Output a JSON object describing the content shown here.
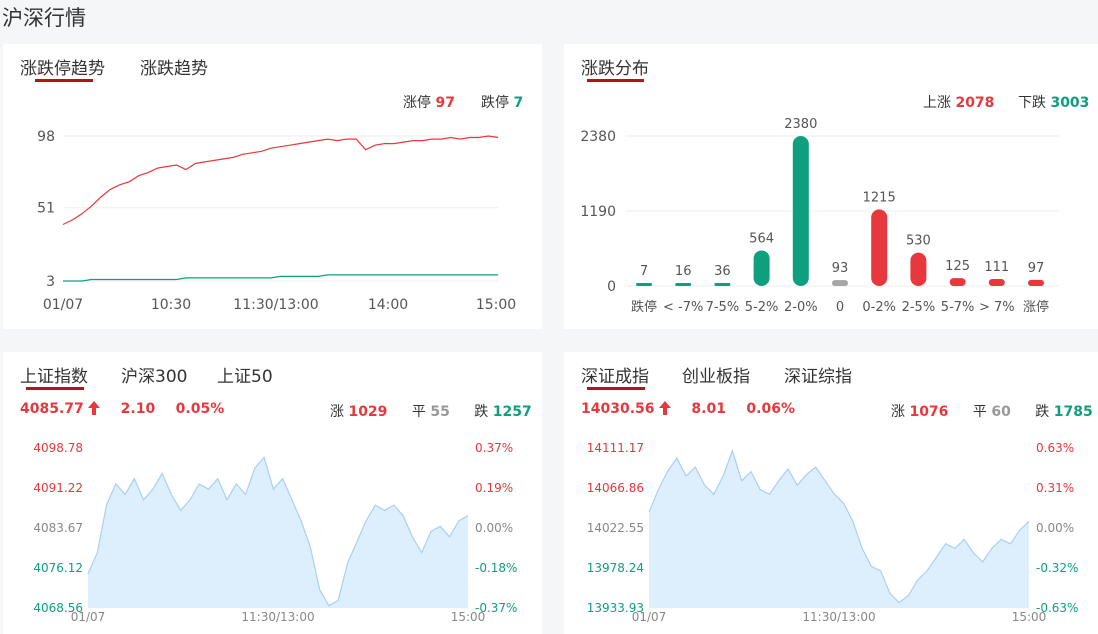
{
  "page_title": "沪深行情",
  "colors": {
    "red": "#e8383d",
    "green": "#0e9f7e",
    "gray": "#999999",
    "accent": "#b5121b",
    "area": "#ddeefc",
    "area_line": "#a9d0f5"
  },
  "trend_panel": {
    "tabs": [
      {
        "label": "涨跌停趋势",
        "active": true
      },
      {
        "label": "涨跌趋势",
        "active": false
      }
    ],
    "limit_up_label": "涨停",
    "limit_up_value": "97",
    "limit_down_label": "跌停",
    "limit_down_value": "7",
    "chart_data": {
      "type": "line",
      "x_ticks": [
        "01/07",
        "10:30",
        "11:30/13:00",
        "14:00",
        "15:00"
      ],
      "y_ticks": [
        "98",
        "51",
        "3"
      ],
      "ylim": [
        3,
        98
      ],
      "series": [
        {
          "name": "涨停",
          "color": "#e8383d",
          "values": [
            40,
            43,
            47,
            52,
            58,
            63,
            66,
            68,
            72,
            74,
            77,
            78,
            79,
            76,
            80,
            81,
            82,
            83,
            84,
            86,
            87,
            88,
            90,
            91,
            92,
            93,
            94,
            95,
            96,
            95,
            96,
            96,
            89,
            92,
            93,
            93,
            94,
            95,
            95,
            96,
            96,
            97,
            96,
            97,
            97,
            98,
            97
          ]
        },
        {
          "name": "跌停",
          "color": "#0e9f7e",
          "values": [
            3,
            3,
            3,
            4,
            4,
            4,
            4,
            4,
            4,
            4,
            4,
            4,
            4,
            5,
            5,
            5,
            5,
            5,
            5,
            5,
            5,
            5,
            5,
            6,
            6,
            6,
            6,
            6,
            7,
            7,
            7,
            7,
            7,
            7,
            7,
            7,
            7,
            7,
            7,
            7,
            7,
            7,
            7,
            7,
            7,
            7,
            7
          ]
        }
      ]
    }
  },
  "dist_panel": {
    "tabs": [
      {
        "label": "涨跌分布",
        "active": true
      }
    ],
    "up_label": "上涨",
    "up_value": "2078",
    "down_label": "下跌",
    "down_value": "3003",
    "chart_data": {
      "type": "bar",
      "categories": [
        "跌停",
        "< -7%",
        "7-5%",
        "5-2%",
        "2-0%",
        "0",
        "0-2%",
        "2-5%",
        "5-7%",
        "> 7%",
        "涨停"
      ],
      "values": [
        7,
        16,
        36,
        564,
        2380,
        93,
        1215,
        530,
        125,
        111,
        97
      ],
      "colors": [
        "#0e9f7e",
        "#0e9f7e",
        "#0e9f7e",
        "#0e9f7e",
        "#0e9f7e",
        "#a6a6a6",
        "#e8383d",
        "#e8383d",
        "#e8383d",
        "#e8383d",
        "#e8383d"
      ],
      "y_ticks": [
        "2380",
        "1190",
        "0"
      ],
      "ylim": [
        0,
        2380
      ]
    }
  },
  "sh_panel": {
    "tabs": [
      {
        "label": "上证指数",
        "active": true
      },
      {
        "label": "沪深300",
        "active": false
      },
      {
        "label": "上证50",
        "active": false
      }
    ],
    "price": "4085.77",
    "change": "2.10",
    "pct": "0.05%",
    "up_label": "涨",
    "up_value": "1029",
    "flat_label": "平",
    "flat_value": "55",
    "down_label": "跌",
    "down_value": "1257",
    "chart_data": {
      "type": "area",
      "y_ticks_left": [
        "4098.78",
        "4091.22",
        "4083.67",
        "4076.12",
        "4068.56"
      ],
      "y_ticks_right": [
        "0.37%",
        "0.19%",
        "0.00%",
        "-0.18%",
        "-0.37%"
      ],
      "x_ticks": [
        "01/07",
        "11:30/13:00",
        "15:00"
      ],
      "ylim": [
        4068.56,
        4098.78
      ],
      "values": [
        4075,
        4079,
        4088,
        4092,
        4090,
        4093,
        4089,
        4091,
        4094,
        4090,
        4087,
        4089,
        4092,
        4091,
        4093,
        4089,
        4092,
        4090,
        4095,
        4097,
        4091,
        4093,
        4089,
        4085,
        4080,
        4072,
        4069,
        4070,
        4077,
        4081,
        4085,
        4088,
        4087,
        4088,
        4086,
        4082,
        4079,
        4083,
        4084,
        4082,
        4085,
        4086
      ]
    }
  },
  "sz_panel": {
    "tabs": [
      {
        "label": "深证成指",
        "active": true
      },
      {
        "label": "创业板指",
        "active": false
      },
      {
        "label": "深证综指",
        "active": false
      }
    ],
    "price": "14030.56",
    "change": "8.01",
    "pct": "0.06%",
    "up_label": "涨",
    "up_value": "1076",
    "flat_label": "平",
    "flat_value": "60",
    "down_label": "跌",
    "down_value": "1785",
    "chart_data": {
      "type": "area",
      "y_ticks_left": [
        "14111.17",
        "14066.86",
        "14022.55",
        "13978.24",
        "13933.93"
      ],
      "y_ticks_right": [
        "0.63%",
        "0.31%",
        "0.00%",
        "-0.32%",
        "-0.63%"
      ],
      "x_ticks": [
        "01/07",
        "11:30/13:00",
        "15:00"
      ],
      "ylim": [
        13933.93,
        14111.17
      ],
      "values": [
        14040,
        14065,
        14085,
        14100,
        14080,
        14090,
        14070,
        14060,
        14080,
        14108,
        14075,
        14085,
        14065,
        14060,
        14075,
        14088,
        14070,
        14082,
        14090,
        14075,
        14060,
        14050,
        14030,
        14000,
        13980,
        13975,
        13950,
        13940,
        13948,
        13965,
        13975,
        13990,
        14005,
        14000,
        14010,
        13995,
        13985,
        14000,
        14010,
        14005,
        14020,
        14030
      ]
    }
  }
}
